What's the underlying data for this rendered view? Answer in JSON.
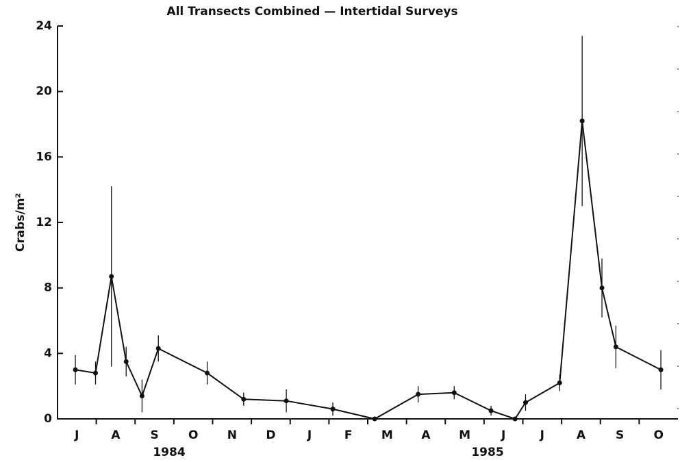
{
  "chart_data": {
    "type": "line",
    "title": "All Transects Combined — Intertidal Surveys",
    "y_label": "Crabs/m²",
    "year_labels": [
      "1984",
      "1985"
    ],
    "xlim": [
      0,
      16
    ],
    "xticks": [
      {
        "value": 0.5,
        "label": "J"
      },
      {
        "value": 1.5,
        "label": "A"
      },
      {
        "value": 2.5,
        "label": "S"
      },
      {
        "value": 3.5,
        "label": "O"
      },
      {
        "value": 4.5,
        "label": "N"
      },
      {
        "value": 5.5,
        "label": "D"
      },
      {
        "value": 6.5,
        "label": "J"
      },
      {
        "value": 7.5,
        "label": "F"
      },
      {
        "value": 8.5,
        "label": "M"
      },
      {
        "value": 9.5,
        "label": "A"
      },
      {
        "value": 10.5,
        "label": "M"
      },
      {
        "value": 11.5,
        "label": "J"
      },
      {
        "value": 12.5,
        "label": "J"
      },
      {
        "value": 13.5,
        "label": "A"
      },
      {
        "value": 14.5,
        "label": "S"
      },
      {
        "value": 15.5,
        "label": "O"
      }
    ],
    "ylim": [
      0,
      24
    ],
    "yticks": [
      0,
      4,
      8,
      12,
      16,
      20,
      24
    ],
    "grid": false,
    "color": "#111111",
    "x": [
      0.46,
      0.98,
      1.39,
      1.77,
      2.18,
      2.6,
      3.86,
      4.8,
      5.9,
      7.1,
      8.18,
      9.3,
      10.23,
      11.18,
      11.8,
      12.07,
      12.95,
      13.53,
      14.04,
      14.4,
      15.56
    ],
    "values": [
      3.0,
      2.8,
      8.7,
      3.5,
      1.4,
      4.3,
      2.8,
      1.2,
      1.1,
      0.6,
      0,
      1.5,
      1.6,
      0.5,
      0,
      1.0,
      2.2,
      18.2,
      8.0,
      4.4,
      3.0
    ],
    "errors": [
      0.9,
      0.7,
      5.5,
      0.9,
      1.0,
      0.8,
      0.7,
      0.4,
      0.7,
      0.4,
      0,
      0.5,
      0.4,
      0.3,
      0,
      0.5,
      0.5,
      5.2,
      1.8,
      1.3,
      1.2
    ]
  }
}
